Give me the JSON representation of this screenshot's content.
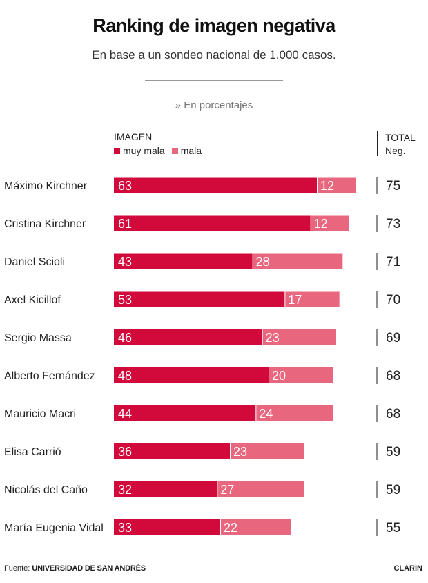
{
  "header": {
    "title": "Ranking de imagen negativa",
    "subtitle": "En base a un sondeo nacional de 1.000 casos.",
    "units": "» En porcentajes"
  },
  "columns": {
    "imagen": "IMAGEN",
    "total_line1": "TOTAL",
    "total_line2": "Neg."
  },
  "legend": {
    "muy_mala": "muy mala",
    "mala": "mala"
  },
  "colors": {
    "muy_mala": "#d20a3c",
    "mala": "#e8677f",
    "row_divider": "#d6d6d6"
  },
  "footer": {
    "source_label": "Fuente:",
    "source_name": "UNIVERSIDAD DE SAN ANDRÉS",
    "brand": "CLARÍN"
  },
  "chart_data": {
    "type": "bar",
    "orientation": "horizontal",
    "stacked": true,
    "categories": [
      "Máximo Kirchner",
      "Cristina Kirchner",
      "Daniel Scioli",
      "Axel Kicillof",
      "Sergio Massa",
      "Alberto Fernández",
      "Mauricio Macri",
      "Elisa Carrió",
      "Nicolás del Caño",
      "María Eugenia Vidal"
    ],
    "series": [
      {
        "name": "muy mala",
        "values": [
          63,
          61,
          43,
          53,
          46,
          48,
          44,
          36,
          32,
          33
        ]
      },
      {
        "name": "mala",
        "values": [
          12,
          12,
          28,
          17,
          23,
          20,
          24,
          23,
          27,
          22
        ]
      }
    ],
    "totals": [
      75,
      73,
      71,
      70,
      69,
      68,
      68,
      59,
      59,
      55
    ],
    "xlim": [
      0,
      75
    ]
  }
}
